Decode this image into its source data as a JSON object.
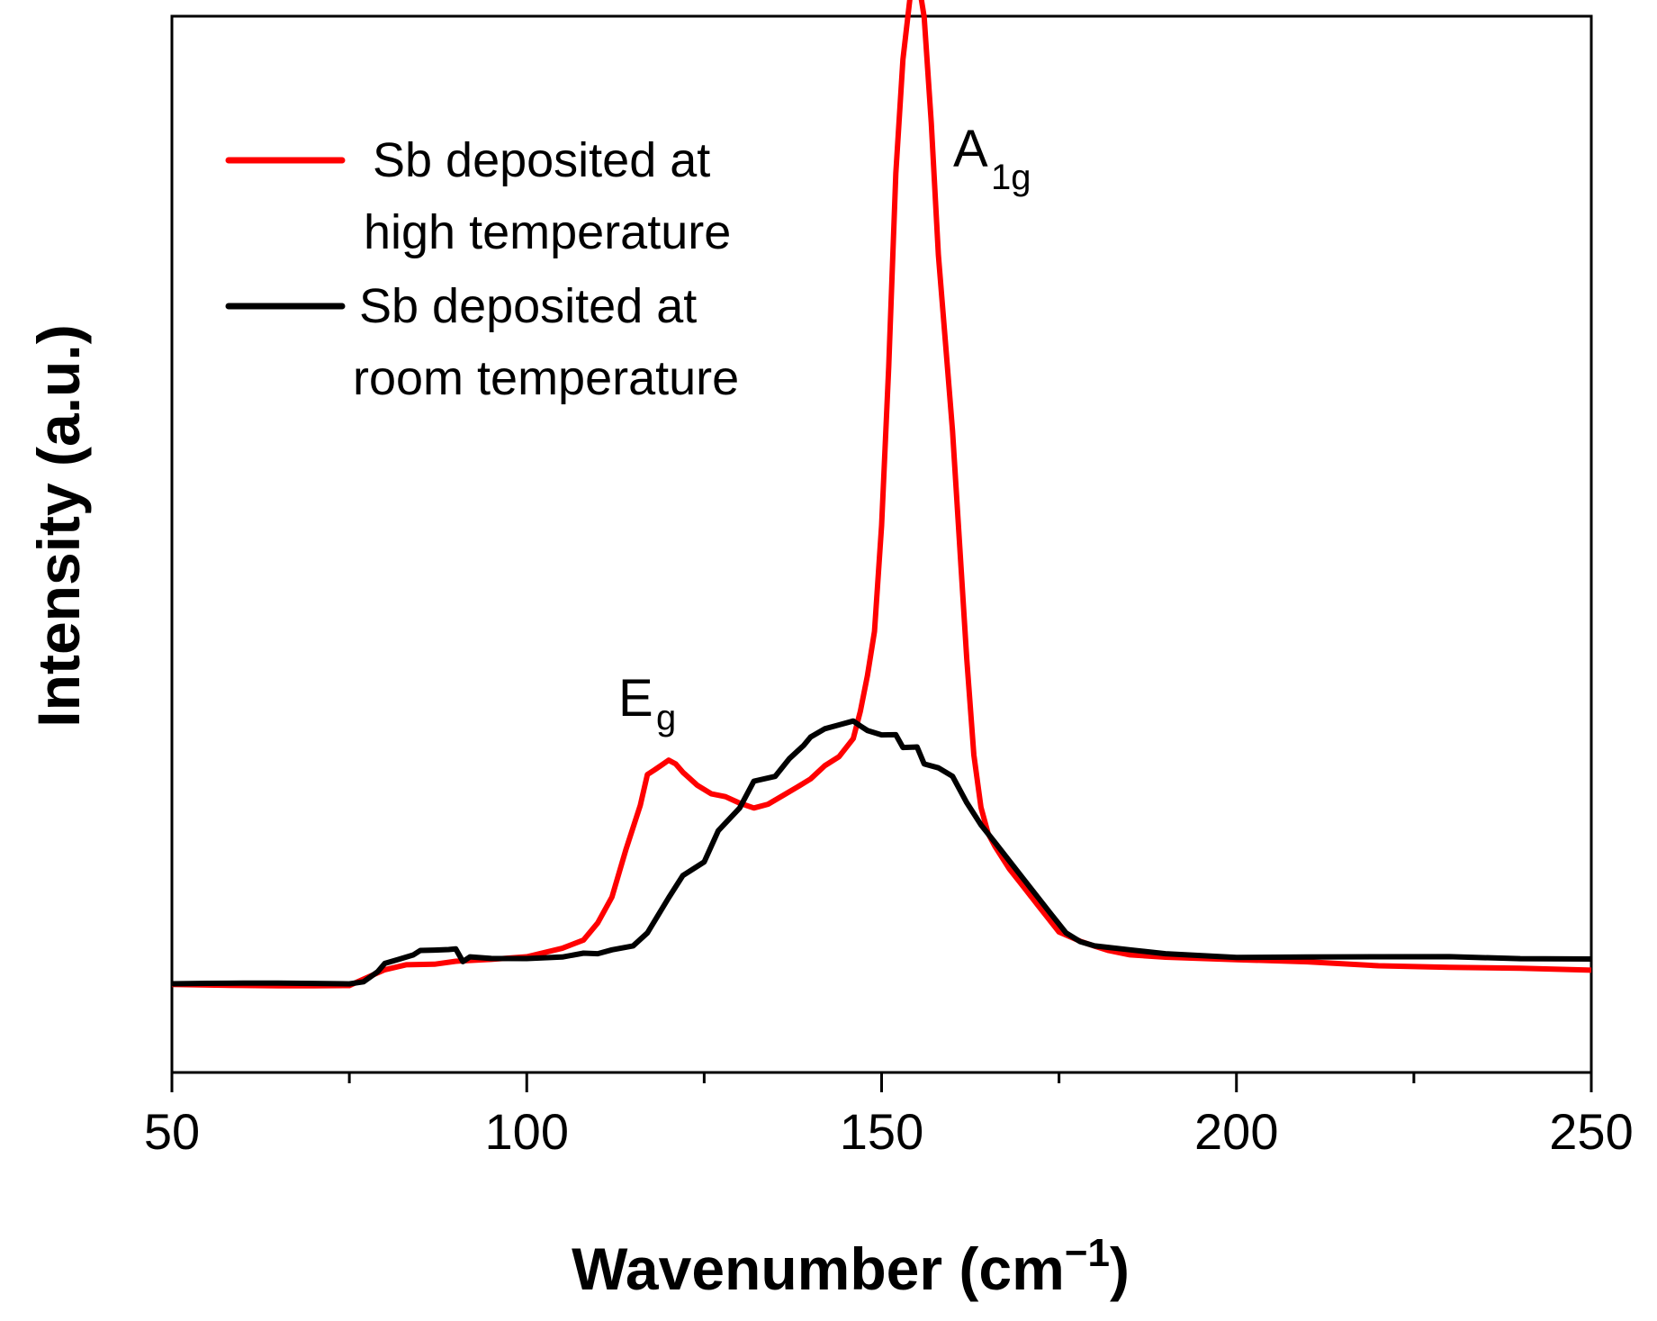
{
  "chart_data": {
    "type": "line",
    "xlabel": "Wavenumber (cm",
    "xlabel_sup": "−1",
    "xlabel_close": ")",
    "ylabel": "Intensity (a.u.)",
    "xlim": [
      50,
      250
    ],
    "ylim": [
      -0.1,
      1.1
    ],
    "xticks": [
      50,
      100,
      150,
      200,
      250
    ],
    "xtick_labels": [
      "50",
      "100",
      "150",
      "200",
      "250"
    ],
    "minor_xticks": [
      75,
      125,
      175,
      225
    ],
    "y_ticks_shown": false,
    "grid": false,
    "legend_position": "top-left",
    "annotations": [
      {
        "main": "A",
        "sub": "1g",
        "x": 159,
        "y": 1.0
      },
      {
        "main": "E",
        "sub": "g",
        "x": 117,
        "y": 0.31
      }
    ],
    "series": [
      {
        "name": "Sb deposited at high temperature",
        "legend_line1": "Sb deposited at",
        "legend_line2": "high temperature",
        "color": "#ff0000",
        "x": [
          50,
          55,
          60,
          65,
          70,
          75,
          77,
          80,
          83,
          87,
          90,
          95,
          100,
          105,
          108,
          110,
          112,
          114,
          116,
          117,
          118,
          119,
          120,
          121,
          122,
          124,
          126,
          128,
          130,
          132,
          134,
          136,
          138,
          140,
          142,
          144,
          146,
          147,
          148,
          149,
          150,
          151,
          152,
          153,
          154,
          155,
          156,
          157,
          158,
          159,
          160,
          161,
          162,
          163,
          164,
          165,
          166,
          168,
          170,
          172,
          175,
          178,
          180,
          182,
          185,
          190,
          195,
          200,
          210,
          220,
          230,
          240,
          250
        ],
        "y": [
          0.0,
          0.0,
          0.0,
          0.0,
          0.0,
          0.0,
          0.007,
          0.017,
          0.022,
          0.022,
          0.025,
          0.027,
          0.03,
          0.04,
          0.05,
          0.07,
          0.1,
          0.155,
          0.205,
          0.24,
          0.245,
          0.25,
          0.255,
          0.25,
          0.24,
          0.225,
          0.215,
          0.212,
          0.205,
          0.2,
          0.205,
          0.215,
          0.225,
          0.235,
          0.25,
          0.26,
          0.28,
          0.31,
          0.35,
          0.4,
          0.52,
          0.7,
          0.92,
          1.05,
          1.12,
          1.15,
          1.1,
          0.98,
          0.83,
          0.73,
          0.63,
          0.5,
          0.37,
          0.26,
          0.2,
          0.17,
          0.155,
          0.13,
          0.11,
          0.09,
          0.06,
          0.05,
          0.045,
          0.04,
          0.035,
          0.032,
          0.03,
          0.028,
          0.025,
          0.02,
          0.018,
          0.017,
          0.015
        ]
      },
      {
        "name": "Sb deposited at room temperature",
        "legend_line1": "Sb deposited at",
        "legend_line2": "room temperature",
        "color": "#000000",
        "x": [
          50,
          55,
          60,
          65,
          70,
          75,
          77,
          79,
          80,
          82,
          84,
          85,
          87,
          89,
          90,
          91,
          92,
          95,
          100,
          105,
          108,
          110,
          112,
          115,
          117,
          120,
          122,
          125,
          127,
          130,
          132,
          135,
          137,
          139,
          140,
          142,
          144,
          146,
          147,
          148,
          150,
          152,
          153,
          155,
          156,
          158,
          160,
          162,
          164,
          166,
          168,
          170,
          172,
          174,
          176,
          178,
          180,
          185,
          190,
          200,
          210,
          220,
          230,
          240,
          250
        ],
        "y": [
          0.0,
          0.0,
          0.0,
          0.0,
          0.0,
          0.0,
          0.003,
          0.015,
          0.025,
          0.03,
          0.035,
          0.04,
          0.04,
          0.04,
          0.04,
          0.025,
          0.03,
          0.028,
          0.028,
          0.03,
          0.035,
          0.035,
          0.04,
          0.045,
          0.06,
          0.1,
          0.125,
          0.14,
          0.175,
          0.2,
          0.23,
          0.235,
          0.255,
          0.27,
          0.28,
          0.29,
          0.295,
          0.3,
          0.295,
          0.29,
          0.285,
          0.285,
          0.27,
          0.27,
          0.25,
          0.245,
          0.235,
          0.205,
          0.18,
          0.16,
          0.14,
          0.12,
          0.1,
          0.08,
          0.06,
          0.05,
          0.045,
          0.04,
          0.035,
          0.03,
          0.03,
          0.03,
          0.03,
          0.028,
          0.028
        ]
      }
    ]
  }
}
